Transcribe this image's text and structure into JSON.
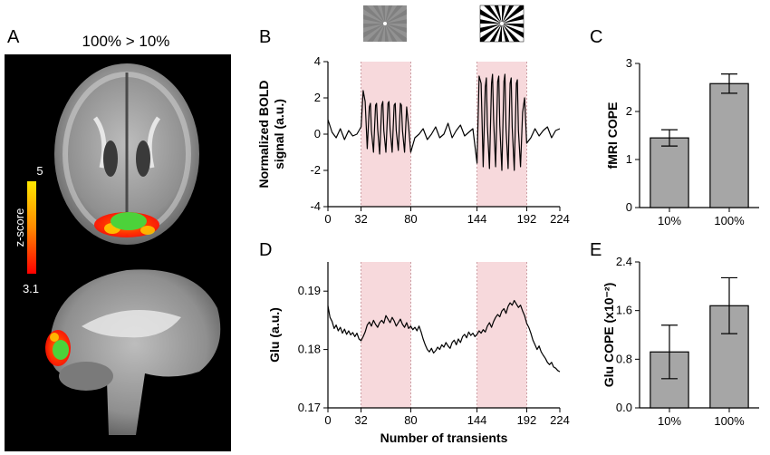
{
  "panels": {
    "A": {
      "letter": "A",
      "title": "100% > 10%",
      "colorbar": {
        "label": "z-score",
        "max": "5",
        "min": "3.1",
        "colors": [
          "#ff0000",
          "#ff8a00",
          "#ffe800"
        ]
      },
      "overlay_colors": {
        "activation": "#ff5a00",
        "mask": "#4cd23a"
      }
    },
    "B": {
      "letter": "B"
    },
    "C": {
      "letter": "C"
    },
    "D": {
      "letter": "D"
    },
    "E": {
      "letter": "E"
    }
  },
  "shade_color": "#f7d9dc",
  "chart_data": [
    {
      "id": "B",
      "type": "line",
      "ylabel": "Normalized BOLD signal (a.u.)",
      "ylabel_lines": [
        "Normalized BOLD",
        "signal (a.u.)"
      ],
      "xlabel": "",
      "xlim": [
        0,
        224
      ],
      "ylim": [
        -4,
        4
      ],
      "xticks": [
        0,
        32,
        80,
        144,
        192,
        224
      ],
      "yticks": [
        -4,
        -2,
        0,
        2,
        4
      ],
      "shaded_blocks": [
        [
          32,
          80
        ],
        [
          144,
          192
        ]
      ],
      "stimulus_icons": [
        "low-contrast-checkerboard",
        "high-contrast-checkerboard"
      ],
      "series": [
        {
          "x": [
            0,
            4,
            8,
            12,
            16,
            20,
            24,
            28,
            32,
            34,
            36,
            38,
            40,
            41,
            42,
            44,
            46,
            47,
            48,
            50,
            52,
            53,
            54,
            56,
            58,
            59,
            60,
            62,
            64,
            65,
            66,
            68,
            70,
            71,
            72,
            74,
            76,
            78,
            80,
            84,
            88,
            92,
            96,
            100,
            104,
            108,
            112,
            116,
            120,
            124,
            128,
            132,
            136,
            140,
            144,
            146,
            148,
            150,
            152,
            153,
            154,
            156,
            158,
            159,
            160,
            162,
            164,
            165,
            166,
            168,
            170,
            171,
            172,
            174,
            176,
            177,
            178,
            180,
            182,
            183,
            184,
            186,
            188,
            190,
            192,
            196,
            200,
            204,
            208,
            212,
            216,
            220,
            224
          ],
          "values": [
            0.8,
            0.1,
            -0.2,
            0.3,
            -0.3,
            0.2,
            -0.1,
            0.0,
            0.4,
            2.4,
            1.8,
            -0.8,
            1.5,
            1.7,
            0.2,
            -1.0,
            1.6,
            1.7,
            0.3,
            -1.1,
            1.6,
            1.8,
            0.2,
            -1.0,
            1.7,
            1.8,
            0.3,
            -1.0,
            1.6,
            1.7,
            0.2,
            -0.9,
            1.7,
            1.6,
            0.2,
            -1.0,
            1.5,
            0.4,
            -1.0,
            -0.2,
            0.0,
            0.3,
            -0.3,
            0.0,
            0.4,
            -0.2,
            0.0,
            0.6,
            -0.2,
            0.2,
            0.5,
            -0.1,
            0.1,
            0.3,
            -1.6,
            3.2,
            2.8,
            -1.8,
            2.6,
            3.1,
            0.5,
            -1.9,
            2.8,
            3.3,
            0.8,
            -1.8,
            2.9,
            3.2,
            0.5,
            -2.0,
            2.9,
            3.3,
            0.3,
            -1.9,
            2.8,
            3.1,
            0.4,
            -2.0,
            2.8,
            3.0,
            0.2,
            -1.8,
            1.2,
            2.0,
            -0.5,
            -0.2,
            0.3,
            -0.1,
            0.2,
            0.4,
            -0.2,
            0.2,
            0.3
          ]
        }
      ]
    },
    {
      "id": "C",
      "type": "bar",
      "ylabel": "fMRI COPE",
      "categories": [
        "10%",
        "100%"
      ],
      "values": [
        1.45,
        2.58
      ],
      "errors": [
        0.17,
        0.2
      ],
      "ylim": [
        0,
        3
      ],
      "yticks": [
        "0",
        "1",
        "2",
        "3"
      ],
      "bar_color": "#a6a6a6"
    },
    {
      "id": "D",
      "type": "line",
      "ylabel": "Glu (a.u.)",
      "xlabel": "Number of transients",
      "xlim": [
        0,
        224
      ],
      "ylim": [
        0.17,
        0.195
      ],
      "xticks": [
        0,
        32,
        80,
        144,
        192,
        224
      ],
      "yticks": [
        "0.17",
        "0.18",
        "0.19"
      ],
      "shaded_blocks": [
        [
          32,
          80
        ],
        [
          144,
          192
        ]
      ],
      "series": [
        {
          "x": [
            0,
            2,
            4,
            6,
            8,
            10,
            12,
            14,
            16,
            18,
            20,
            22,
            24,
            26,
            28,
            30,
            32,
            34,
            36,
            38,
            40,
            42,
            44,
            46,
            48,
            50,
            52,
            54,
            56,
            58,
            60,
            62,
            64,
            66,
            68,
            70,
            72,
            74,
            76,
            78,
            80,
            82,
            84,
            86,
            88,
            90,
            92,
            94,
            96,
            98,
            100,
            102,
            104,
            106,
            108,
            110,
            112,
            114,
            116,
            118,
            120,
            122,
            124,
            126,
            128,
            130,
            132,
            134,
            136,
            138,
            140,
            142,
            144,
            146,
            148,
            150,
            152,
            154,
            156,
            158,
            160,
            162,
            164,
            166,
            168,
            170,
            172,
            174,
            176,
            178,
            180,
            182,
            184,
            186,
            188,
            190,
            192,
            194,
            196,
            198,
            200,
            202,
            204,
            206,
            208,
            210,
            212,
            214,
            216,
            218,
            220,
            222,
            224
          ],
          "values": [
            0.1875,
            0.1855,
            0.1848,
            0.1836,
            0.1842,
            0.1832,
            0.1838,
            0.1828,
            0.1835,
            0.1826,
            0.1832,
            0.1825,
            0.1829,
            0.1822,
            0.1828,
            0.1818,
            0.1815,
            0.1822,
            0.183,
            0.1842,
            0.1847,
            0.184,
            0.185,
            0.1843,
            0.1838,
            0.1846,
            0.185,
            0.1845,
            0.1858,
            0.1852,
            0.1846,
            0.1855,
            0.1849,
            0.184,
            0.1846,
            0.1852,
            0.1843,
            0.1838,
            0.1846,
            0.1836,
            0.184,
            0.1834,
            0.1838,
            0.1832,
            0.184,
            0.183,
            0.1818,
            0.1808,
            0.18,
            0.1796,
            0.1802,
            0.1794,
            0.1798,
            0.1804,
            0.18,
            0.1808,
            0.1804,
            0.1812,
            0.1806,
            0.1802,
            0.1812,
            0.1816,
            0.1808,
            0.1818,
            0.1812,
            0.1822,
            0.1826,
            0.182,
            0.183,
            0.1824,
            0.1828,
            0.1822,
            0.1826,
            0.1832,
            0.1828,
            0.1834,
            0.183,
            0.184,
            0.1846,
            0.1838,
            0.1848,
            0.1855,
            0.186,
            0.1856,
            0.1866,
            0.187,
            0.1862,
            0.1874,
            0.188,
            0.1876,
            0.1884,
            0.1878,
            0.1872,
            0.1876,
            0.1866,
            0.1858,
            0.1845,
            0.1838,
            0.1828,
            0.1816,
            0.1808,
            0.18,
            0.1806,
            0.1796,
            0.179,
            0.1785,
            0.1778,
            0.1774,
            0.1778,
            0.177,
            0.1768,
            0.1764,
            0.1762
          ]
        }
      ]
    },
    {
      "id": "E",
      "type": "bar",
      "ylabel": "Glu COPE (x10⁻²)",
      "categories": [
        "10%",
        "100%"
      ],
      "values": [
        0.92,
        1.68
      ],
      "errors": [
        0.44,
        0.46
      ],
      "ylim": [
        0,
        2.4
      ],
      "yticks": [
        "0.0",
        "0.8",
        "1.6",
        "2.4"
      ],
      "bar_color": "#a6a6a6"
    }
  ]
}
